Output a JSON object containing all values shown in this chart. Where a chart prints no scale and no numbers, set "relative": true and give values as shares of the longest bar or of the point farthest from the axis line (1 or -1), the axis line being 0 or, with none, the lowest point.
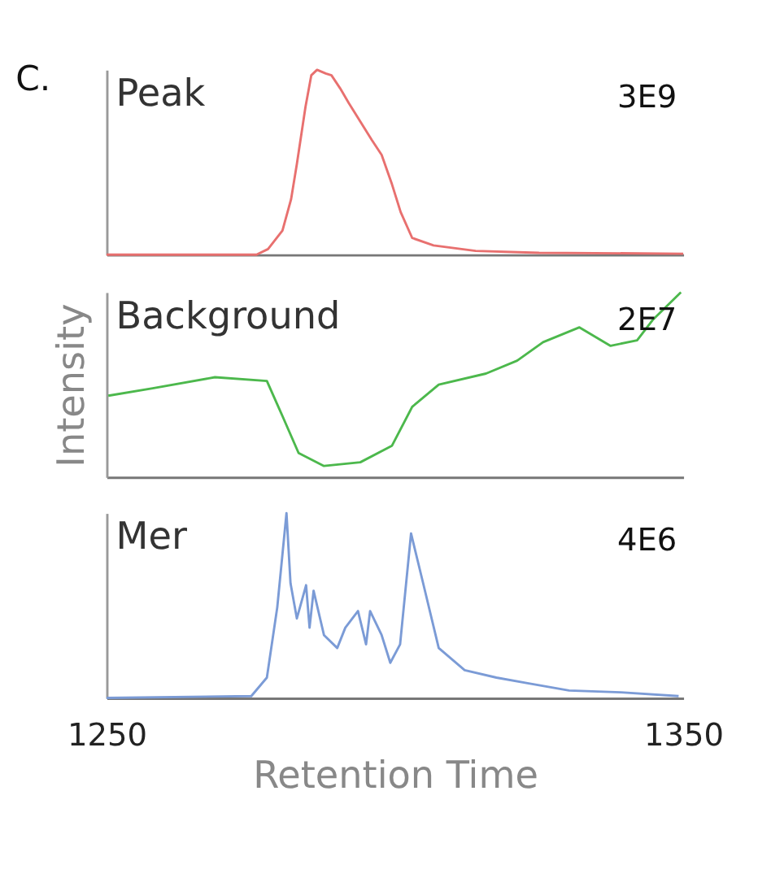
{
  "chart_data": [
    {
      "type": "line",
      "title": "Peak",
      "annotations": [
        "C.",
        "3E9"
      ],
      "relative": true,
      "xlim": [
        1250,
        1350
      ],
      "tick_labels": false,
      "series": [
        {
          "color": "#e8706f",
          "x": [
            1250,
            1276,
            1278,
            1280.5,
            1282,
            1283,
            1284.5,
            1285.5,
            1286.5,
            1288,
            1289,
            1290.5,
            1292,
            1294,
            1296,
            1297.7,
            1299.5,
            1301,
            1303,
            1306.7,
            1314,
            1325,
            1350
          ],
          "values": [
            0,
            0,
            0.03,
            0.13,
            0.3,
            0.49,
            0.8,
            0.97,
            1.0,
            0.98,
            0.97,
            0.9,
            0.82,
            0.72,
            0.62,
            0.54,
            0.38,
            0.23,
            0.09,
            0.05,
            0.02,
            0.01,
            0.005
          ]
        }
      ]
    },
    {
      "type": "line",
      "title": "Background",
      "ylabel": "Intensity",
      "annotations": [
        "2E7"
      ],
      "relative": true,
      "xlim": [
        1250,
        1350
      ],
      "tick_labels": false,
      "series": [
        {
          "color": "#4cb84c",
          "x": [
            1250.3,
            1258,
            1268.8,
            1277.8,
            1280.5,
            1283.3,
            1287.7,
            1294,
            1299.5,
            1303,
            1307.6,
            1315.8,
            1321.2,
            1325.7,
            1332,
            1337.4,
            1342,
            1344.7,
            1349.6
          ],
          "values": [
            0.44,
            0.48,
            0.54,
            0.52,
            0.33,
            0.13,
            0.06,
            0.08,
            0.17,
            0.38,
            0.5,
            0.56,
            0.63,
            0.73,
            0.81,
            0.71,
            0.74,
            0.85,
            1
          ]
        }
      ]
    },
    {
      "type": "line",
      "title": "Mer",
      "xlabel": "Retention Time",
      "annotations": [
        "4E6"
      ],
      "relative": true,
      "xlim": [
        1250,
        1350
      ],
      "xticks": [
        1250,
        1350
      ],
      "tick_labels": "x",
      "series": [
        {
          "color": "#7b9bd6",
          "x": [
            1250,
            1275.1,
            1277.8,
            1279.6,
            1281.2,
            1281.9,
            1283,
            1284.6,
            1285.2,
            1285.9,
            1287.7,
            1290,
            1291.4,
            1293.6,
            1295,
            1295.7,
            1297.7,
            1299.2,
            1300.9,
            1302.8,
            1304.9,
            1307.6,
            1312.1,
            1317.6,
            1323,
            1330.2,
            1339.2,
            1349.2
          ],
          "values": [
            0,
            0.01,
            0.11,
            0.49,
            1,
            0.62,
            0.43,
            0.61,
            0.38,
            0.58,
            0.34,
            0.27,
            0.38,
            0.47,
            0.29,
            0.47,
            0.34,
            0.19,
            0.29,
            0.89,
            0.62,
            0.27,
            0.15,
            0.11,
            0.08,
            0.04,
            0.03,
            0.01
          ]
        }
      ]
    }
  ]
}
